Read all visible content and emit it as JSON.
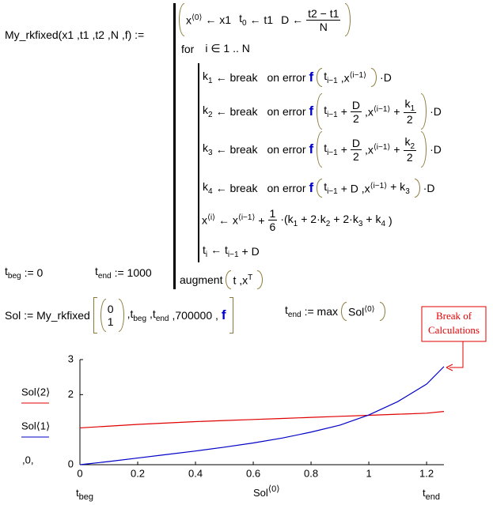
{
  "function_name": "My_rkfixed(x1 ,t1 ,t2 ,N ,f) :=",
  "lines": [
    [
      "x",
      "⟨0⟩",
      "← x1",
      "t",
      "0",
      "← t1",
      "D ←",
      "t2 − t1",
      "N"
    ],
    [
      "for",
      "i ∈ 1 .. N"
    ],
    [
      "k",
      "1",
      "← break",
      "on error",
      "f",
      "t",
      "i−1",
      ",x",
      "⟨i−1⟩",
      "·D"
    ],
    [
      "k",
      "2",
      "← break",
      "on error",
      "f",
      "t",
      "i−1",
      "+",
      "D",
      "2",
      ",x",
      "⟨i−1⟩",
      "+",
      "k",
      "1",
      "2",
      "·D"
    ],
    [
      "k",
      "3",
      "← break",
      "on error",
      "f",
      "t",
      "i−1",
      "+",
      "D",
      "2",
      ",x",
      "⟨i−1⟩",
      "+",
      "k",
      "2",
      "2",
      "·D"
    ],
    [
      "k",
      "4",
      "← break",
      "on error",
      "f",
      "t",
      "i−1",
      "+ D ,x",
      "⟨i−1⟩",
      "+ k",
      "3",
      "·D"
    ],
    [
      "x",
      "⟨i⟩",
      "← x",
      "⟨i−1⟩",
      "+",
      "1",
      "6",
      "·(k",
      "1",
      "+ 2·k",
      "2",
      "+ 2·k",
      "3",
      "+ k",
      "4",
      ")"
    ],
    [
      "t",
      "i",
      "← t",
      "i−1",
      "+ D"
    ],
    [
      "augment",
      "t ,x",
      "T"
    ]
  ],
  "tbeg": [
    "t",
    "beg",
    ":= 0"
  ],
  "tend": [
    "t",
    "end",
    ":= 1000"
  ],
  "sol": [
    "Sol := My_rkfixed",
    "0",
    "1",
    ",t",
    "beg",
    ",t",
    "end",
    ",700000 ,",
    "f"
  ],
  "tend_max": [
    "t",
    "end",
    ":= max",
    "Sol",
    "⟨0⟩"
  ],
  "chart_data": {
    "type": "line",
    "x": [
      0,
      0.1,
      0.2,
      0.3,
      0.4,
      0.5,
      0.6,
      0.7,
      0.8,
      0.9,
      1.0,
      1.1,
      1.2,
      1.26
    ],
    "series": [
      {
        "name": "Sol⟨2⟩",
        "color": "#e00000",
        "values": [
          1.05,
          1.1,
          1.15,
          1.19,
          1.23,
          1.26,
          1.29,
          1.32,
          1.35,
          1.38,
          1.41,
          1.44,
          1.47,
          1.52
        ]
      },
      {
        "name": "Sol⟨1⟩",
        "color": "#0000c8",
        "values": [
          0,
          0.09,
          0.19,
          0.29,
          0.39,
          0.5,
          0.62,
          0.76,
          0.93,
          1.13,
          1.42,
          1.8,
          2.3,
          2.8
        ]
      }
    ],
    "xlim": [
      0,
      1.26
    ],
    "xticks": [
      0,
      0.2,
      0.4,
      0.6,
      0.8,
      1,
      1.2
    ],
    "ylim": [
      0,
      3
    ],
    "yticks": [
      0,
      2,
      3
    ],
    "y_limit_marker": ",0,",
    "x_axis_labels": {
      "left": [
        "t",
        "beg"
      ],
      "center": [
        "Sol",
        "⟨0⟩"
      ],
      "right": [
        "t",
        "end"
      ]
    },
    "annotation": [
      "Break of",
      "Calculations"
    ],
    "annotation_color": "#e00000",
    "grid": false
  }
}
